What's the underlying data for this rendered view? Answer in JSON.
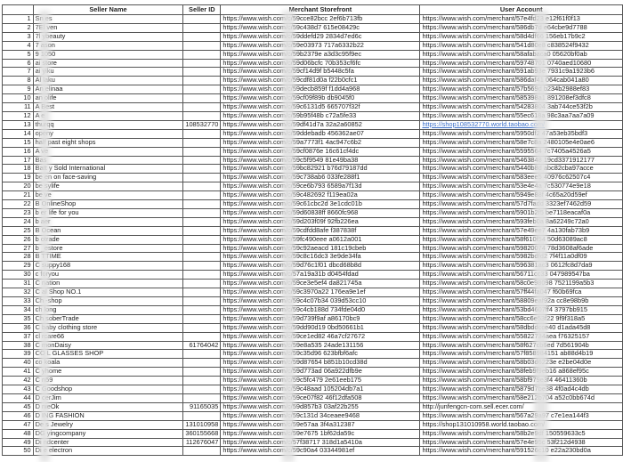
{
  "columns": [
    "",
    "Seller Name",
    "Seller ID",
    "Merchant Storefront",
    "User Account"
  ],
  "rows": [
    [
      "1",
      "Sn  es",
      "",
      "https://www.wish.com/c/59cce82bcc  2ef6b713fb",
      "https://www.wish.com/merchant/57e4fd23  e12f61f0f13"
    ],
    [
      "2",
      "7El  ven",
      "",
      "https://www.wish.com/c/59c438d7  615e08429c",
      "https://www.wish.com/merchant/586db7d  e64cbe9d7788"
    ],
    [
      "3",
      "7l  ybeauty",
      "",
      "https://www.wish.com/c/59ddefd29  2834d7ed6c",
      "https://www.wish.com/merchant/58d4df66  156eb17b9c2"
    ],
    [
      "4",
      "7  ason",
      "",
      "https://www.wish.com/c/59e03973  717a6332b22",
      "https://www.wish.com/merchant/541d80e8  c838524f9432"
    ],
    [
      "5",
      "9  1050",
      "",
      "https://www.wish.com/c/59b2379e  a3d3c95f9ec",
      "https://www.wish.com/merchant/58afabaca0  05620bf0ab"
    ],
    [
      "6",
      "ai  store",
      "",
      "https://www.wish.com/c/59d06bcfc  70b353cf6fc",
      "https://www.wish.com/merchant/59748701  0740aed10680"
    ],
    [
      "7",
      "ai  yiku",
      "",
      "https://www.wish.com/c/59cf14d9f  b5448c5fa",
      "https://www.wish.com/merchant/591ab93e  7931c9a1923b6"
    ],
    [
      "8",
      "Al  laku",
      "",
      "https://www.wish.com/c/59cdf81d0a  f22b0cfc1",
      "https://www.wish.com/merchant/586daf41  064cab041a80"
    ],
    [
      "9",
      "An  elinaa",
      "",
      "https://www.wish.com/c/59decb859f  f1dd4a968",
      "https://www.wish.com/merchant/57b569d  b234b2988ef83"
    ],
    [
      "10",
      "an  olife",
      "",
      "https://www.wish.com/c/59cf09f89b  db9045f0",
      "https://www.wish.com/merchant/585398a1  891208ef3dfc8"
    ],
    [
      "11",
      "A  Best",
      "",
      "https://www.wish.com/c/59c6131d5  665707f32f",
      "https://www.wish.com/merchant/54283804  3ab744ce53f2b"
    ],
    [
      "12",
      "A  e",
      "",
      "https://www.wish.com/c/59b95f48b  c72a5fe33",
      "https://www.wish.com/merchant/55ec618a  98c3aa7aa7a09"
    ],
    [
      "13",
      "  thurqq",
      "108532770",
      "https://www.wish.com/c/59df41d7a  32a2a60852",
      "https://shop108532770.world.taobao.com/"
    ],
    [
      "14",
      "  openy",
      "",
      "https://www.wish.com/c/59ddebadb  456362ae07",
      "https://www.wish.com/merchant/5950df2  47a53eb35bdf3"
    ],
    [
      "15",
      "  half past eight shops",
      "",
      "https://www.wish.com/c/59a7773f1  4ac947c6b2",
      "https://www.wish.com/merchant/58e7c8a  2480105e4e0ae6"
    ],
    [
      "16",
      "A  ve",
      "",
      "https://www.wish.com/c/59cf0876e  16c61cf4dc",
      "https://www.wish.com/merchant/5595564  7c7405a4526a5"
    ],
    [
      "17",
      "Bas",
      "",
      "https://www.wish.com/c/59c5f9549  81e49ba38",
      "https://www.wish.com/merchant/5463848  19cd3371912177"
    ],
    [
      "18",
      "Batt  y Sold International",
      "",
      "https://www.wish.com/c/59bc82921  b76d79187dd",
      "https://www.wish.com/merchant/5440b8d  abc82cba97acce"
    ],
    [
      "19",
      "be  en on face-saving",
      "",
      "https://www.wish.com/c/59c738ab6  033fe288f1",
      "https://www.wish.com/merchant/583eee5  40976c62507c4"
    ],
    [
      "20",
      "be  sylife",
      "",
      "https://www.wish.com/c/59ce6b793  6589a7f13d",
      "https://www.wish.com/merchant/53e4e4a  7c530774e9e18"
    ],
    [
      "21",
      "be  ve",
      "",
      "https://www.wish.com/c/59c482692  f119ea02a",
      "https://www.wish.com/merchant/5949e88f  4c65a20d59ef"
    ],
    [
      "22",
      "B  OnlineShop",
      "",
      "https://www.wish.com/c/59c61cbc2d  3e1cdc01b",
      "https://www.wish.com/merchant/57d7fadd  3323ef7462d59"
    ],
    [
      "23",
      "b  er life for you",
      "",
      "https://www.wish.com/c/59d60838ff  8660fc968",
      "https://www.wish.com/merchant/5901b2f5  be7118eacaf0a"
    ],
    [
      "24",
      "b  aer",
      "",
      "https://www.wish.com/c/59d203f09f  92fb226ea",
      "https://www.wish.com/merchant/593feb0a  8a62249c72a0"
    ],
    [
      "25",
      "B  Ocean",
      "",
      "https://www.wish.com/c/59cdfdd8afe  f387838f",
      "https://www.wish.com/merchant/57e49ee7  4a130fab73b9"
    ],
    [
      "26",
      "b  otrade",
      "",
      "https://www.wish.com/c/59fc490eee  a0612a001",
      "https://www.wish.com/merchant/58f610f54  50d63089ac8"
    ],
    [
      "27",
      "b  _estore",
      "",
      "https://www.wish.com/c/59c92aeacd  181c19cbeb",
      "https://www.wish.com/merchant/59820074  78d3608af6ade"
    ],
    [
      "28",
      "B  TTIME",
      "",
      "https://www.wish.com/c/59c8c16dc3  3e9de34fa",
      "https://www.wish.com/merchant/5982bdfd2  7f4f11a0df09"
    ],
    [
      "29",
      "C  suppy168",
      "",
      "https://www.wish.com/c/59d76c1f01  dbcd68b8d",
      "https://www.wish.com/merchant/596381ac3  0612fc8d7da9"
    ],
    [
      "30",
      "c  foryou",
      "",
      "https://www.wish.com/c/57a19a31b  d0454fdad",
      "https://www.wish.com/merchant/56711cc33  047989547ba"
    ],
    [
      "31",
      "C  nation",
      "",
      "https://www.wish.com/c/59ce3e5ef4  da821745a",
      "https://www.wish.com/merchant/58c0e98098  7521199a5b3"
    ],
    [
      "32",
      "C  al Shop NO.1",
      "",
      "https://www.wish.com/c/59c3970a22  176ea9e1ef",
      "https://www.wish.com/merchant/57ff44fa047  f60b69fca"
    ],
    [
      "33",
      "Ch  -shop",
      "",
      "https://www.wish.com/c/59c4c07b34  039d53cc10",
      "https://www.wish.com/merchant/58809eaf92a  cc8e98b9b"
    ],
    [
      "34",
      "ch  long",
      "",
      "https://www.wish.com/c/59c4cb188d  734fde04d0",
      "https://www.wish.com/merchant/53bd4607ff4  3797bb915"
    ],
    [
      "35",
      "Ch  soberTrade",
      "",
      "https://www.wish.com/c/59d739f9af  a86170bc9",
      "https://www.wish.com/merchant/58cc6e53f22  9f9f318a5"
    ],
    [
      "36",
      "C  baby clothing store",
      "",
      "https://www.wish.com/c/59dd90d19  0bd50661b1",
      "https://www.wish.com/merchant/58dbddcce40  d1ada45d8"
    ],
    [
      "37",
      "cl  rcare66",
      "",
      "https://www.wish.com/c/59ce1ed82  46a7cf27672",
      "https://www.wish.com/merchant/55822734aea  f76325157"
    ],
    [
      "38",
      "C  monDaisy",
      "61764042",
      "https://www.wish.com/c/59e8a535  24ade131156",
      "https://www.wish.com/merchant/58f627cb6ed  7d561904b"
    ],
    [
      "39",
      "CO  L GLASSES SHOP",
      "",
      "https://www.wish.com/c/59c35d96  623bfbf6afc",
      "https://www.wish.com/merchant/57f858984151  ab88d4b19"
    ],
    [
      "40",
      "co  koala",
      "",
      "https://www.wish.com/c/59d87654  b851b10cd38d",
      "https://www.wish.com/merchant/58b03d6223e  e2be04d0e"
    ],
    [
      "41",
      "C  yhome",
      "",
      "https://www.wish.com/c/59d773ad  06a922dfb9e",
      "https://www.wish.com/merchant/58feb9f9eb16  a868ef95c"
    ],
    [
      "42",
      "C  n59",
      "",
      "https://www.wish.com/c/59c5fc479  2e61eeb175",
      "https://www.wish.com/merchant/58bf979e3f4  46411360b"
    ],
    [
      "43",
      "C  Goodshop",
      "",
      "https://www.wish.com/c/59c48aad  105204db7a1",
      "https://www.wish.com/merchant/5879d7be38  4f0ad4c4db"
    ],
    [
      "44",
      "D  cerJim",
      "",
      "https://www.wish.com/c/59ce07f82  46f12dfa508",
      "https://www.wish.com/merchant/58e212b704  a52c0bb674d"
    ],
    [
      "45",
      "D  nieOk",
      "91165035",
      "https://www.wish.com/c/59d857b3  03af22b255",
      "http://junfengcn-com.sell.ecer.com/"
    ],
    [
      "46",
      "D  ING FASHION",
      "",
      "https://www.wish.com/c/59c131d  34ceaee9468",
      "https://www.wish.com/merchant/567a29a97  c7e1ea144f3"
    ],
    [
      "47",
      "De  s Jewelry",
      "131010958",
      "https://www.wish.com/c/59e57aa  3f4a312387",
      "https://shop131010958.world.taobao.com/"
    ],
    [
      "48",
      "DG  yingcompany",
      "360155668",
      "https://www.wish.com/c/59e7675  1bf62da59c",
      "https://www.wish.com/merchant/58b2e9df  150559633c5"
    ],
    [
      "49",
      "Di  ndcenter",
      "112676047",
      "https://www.wish.com/c/57f38717  318d1a5410a",
      "https://www.wish.com/merchant/57e4e95c  53f212d4938"
    ],
    [
      "50",
      "Di  e electron",
      "",
      "https://www.wish.com/c/59c90a4  03344981ef",
      "https://www.wish.com/merchant/591526c10  e22a230bd0a"
    ]
  ],
  "link_rows": [
    13
  ],
  "colors": {
    "link": "#3b6fc9",
    "border": "#555555"
  }
}
